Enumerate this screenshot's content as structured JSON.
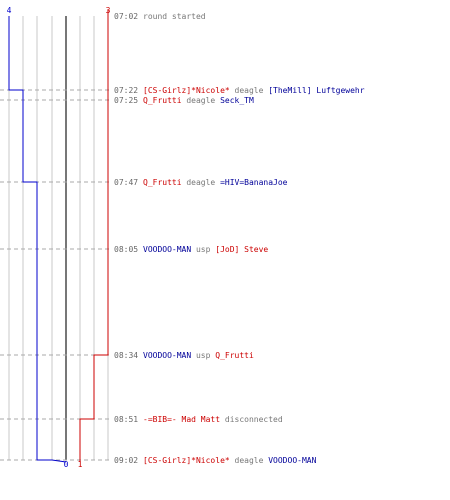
{
  "chart_data": {
    "type": "line",
    "team_blue": {
      "color": "#0000cc",
      "start_count": "4",
      "end_count": "0",
      "values": [
        4,
        3,
        3,
        2,
        2,
        2,
        2,
        1,
        0
      ]
    },
    "team_red": {
      "color": "#cc0000",
      "start_count": "3",
      "end_count": "1",
      "values": [
        3,
        3,
        3,
        3,
        3,
        2,
        1,
        1,
        1
      ]
    },
    "colors": {
      "time": "#666666",
      "grid": "#c8c8c8",
      "center": "#777777",
      "dash": "#aaaaaa",
      "neutral": "#777777",
      "red": "#cc0000",
      "blue": "#000099"
    },
    "events": [
      {
        "time": "07:02",
        "parts": [
          {
            "t": "round started",
            "c": "neutral"
          }
        ]
      },
      {
        "time": "07:22",
        "parts": [
          {
            "t": "[CS-Girlz]*Nicole*",
            "c": "red"
          },
          {
            "t": " deagle ",
            "c": "neutral"
          },
          {
            "t": "[TheMill] Luftgewehr",
            "c": "blue"
          }
        ]
      },
      {
        "time": "07:25",
        "parts": [
          {
            "t": "Q_Frutti",
            "c": "red"
          },
          {
            "t": " deagle ",
            "c": "neutral"
          },
          {
            "t": "Seck_TM",
            "c": "blue"
          }
        ]
      },
      {
        "time": "07:47",
        "parts": [
          {
            "t": "Q_Frutti",
            "c": "red"
          },
          {
            "t": " deagle ",
            "c": "neutral"
          },
          {
            "t": "=HIV=BananaJoe",
            "c": "blue"
          }
        ]
      },
      {
        "time": "08:05",
        "parts": [
          {
            "t": "VOODOO-MAN",
            "c": "blue"
          },
          {
            "t": " usp ",
            "c": "neutral"
          },
          {
            "t": "[JoD] Steve",
            "c": "red"
          }
        ]
      },
      {
        "time": "08:34",
        "parts": [
          {
            "t": "VOODOO-MAN",
            "c": "blue"
          },
          {
            "t": " usp ",
            "c": "neutral"
          },
          {
            "t": "Q_Frutti",
            "c": "red"
          }
        ]
      },
      {
        "time": "08:51",
        "parts": [
          {
            "t": "-=BIB=- Mad Matt",
            "c": "red"
          },
          {
            "t": " disconnected",
            "c": "neutral"
          }
        ]
      },
      {
        "time": "09:02",
        "parts": [
          {
            "t": "[CS-Girlz]*Nicole*",
            "c": "red"
          },
          {
            "t": " deagle ",
            "c": "neutral"
          },
          {
            "t": "VOODOO-MAN",
            "c": "blue"
          }
        ]
      }
    ]
  }
}
